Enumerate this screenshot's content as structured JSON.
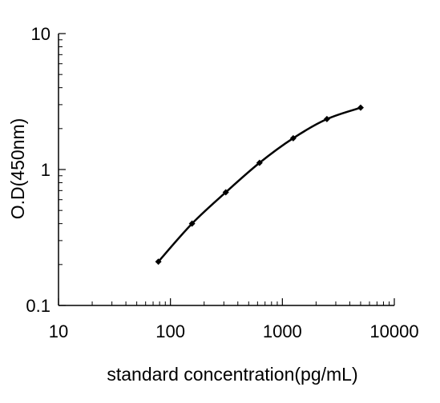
{
  "chart_data": {
    "type": "line",
    "title": "",
    "xlabel": "standard concentration(pg/mL)",
    "ylabel": "O.D(450nm)",
    "x_scale": "log",
    "y_scale": "log",
    "xlim": [
      10,
      10000
    ],
    "ylim": [
      0.1,
      10
    ],
    "x_ticks": [
      "10",
      "100",
      "1000",
      "10000"
    ],
    "y_ticks": [
      "0.1",
      "1",
      "10"
    ],
    "grid": false,
    "legend": "none",
    "series": [
      {
        "color": "#000000",
        "marker": "diamond",
        "smooth": true,
        "x": [
          78,
          156,
          312,
          625,
          1250,
          2500,
          5000
        ],
        "y": [
          0.21,
          0.4,
          0.68,
          1.12,
          1.7,
          2.35,
          2.85
        ]
      }
    ]
  }
}
